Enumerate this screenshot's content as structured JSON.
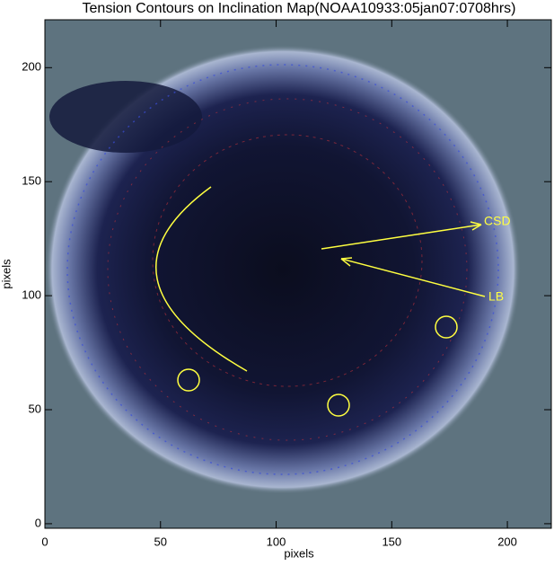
{
  "chart_data": {
    "type": "image",
    "title": "Tension Contours on Inclination Map(NOAA10933:05jan07:0708hrs)",
    "xlabel": "pixels",
    "ylabel": "pixels",
    "xlim": [
      0,
      219
    ],
    "ylim": [
      -2,
      221
    ],
    "xticks": [
      0,
      50,
      100,
      150,
      200
    ],
    "yticks": [
      0,
      50,
      100,
      150,
      200
    ],
    "annotations": [
      "CSD",
      "LB"
    ]
  }
}
